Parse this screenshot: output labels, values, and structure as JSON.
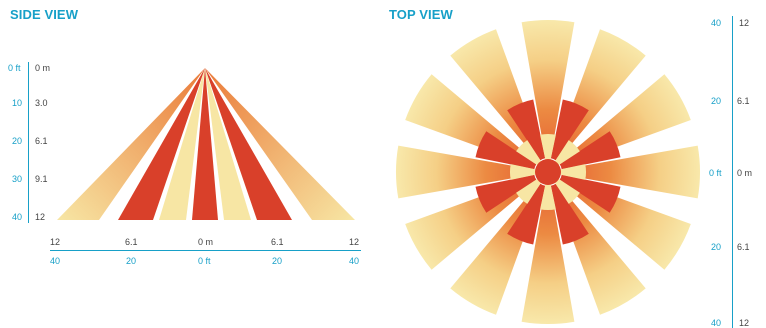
{
  "side_view": {
    "title": "SIDE VIEW",
    "left_scale": [
      {
        "ft": "0 ft",
        "m": "0 m"
      },
      {
        "ft": "10",
        "m": "3.0"
      },
      {
        "ft": "20",
        "m": "6.1"
      },
      {
        "ft": "30",
        "m": "9.1"
      },
      {
        "ft": "40",
        "m": "12"
      }
    ],
    "bottom_scale": [
      {
        "m": "12",
        "ft": "40"
      },
      {
        "m": "6.1",
        "ft": "20"
      },
      {
        "m": "0 m",
        "ft": "0 ft"
      },
      {
        "m": "6.1",
        "ft": "20"
      },
      {
        "m": "12",
        "ft": "40"
      }
    ]
  },
  "top_view": {
    "title": "TOP VIEW",
    "right_scale": [
      {
        "ft": "40",
        "m": "12"
      },
      {
        "ft": "20",
        "m": "6.1"
      },
      {
        "ft": "0 ft",
        "m": "0 m"
      },
      {
        "ft": "20",
        "m": "6.1"
      },
      {
        "ft": "40",
        "m": "12"
      }
    ]
  },
  "colors": {
    "near_red": "#d9402a",
    "mid_orange": "#ea7a38",
    "far_yellow": "#f7e6a4",
    "accent_blue": "#17a0c8"
  }
}
